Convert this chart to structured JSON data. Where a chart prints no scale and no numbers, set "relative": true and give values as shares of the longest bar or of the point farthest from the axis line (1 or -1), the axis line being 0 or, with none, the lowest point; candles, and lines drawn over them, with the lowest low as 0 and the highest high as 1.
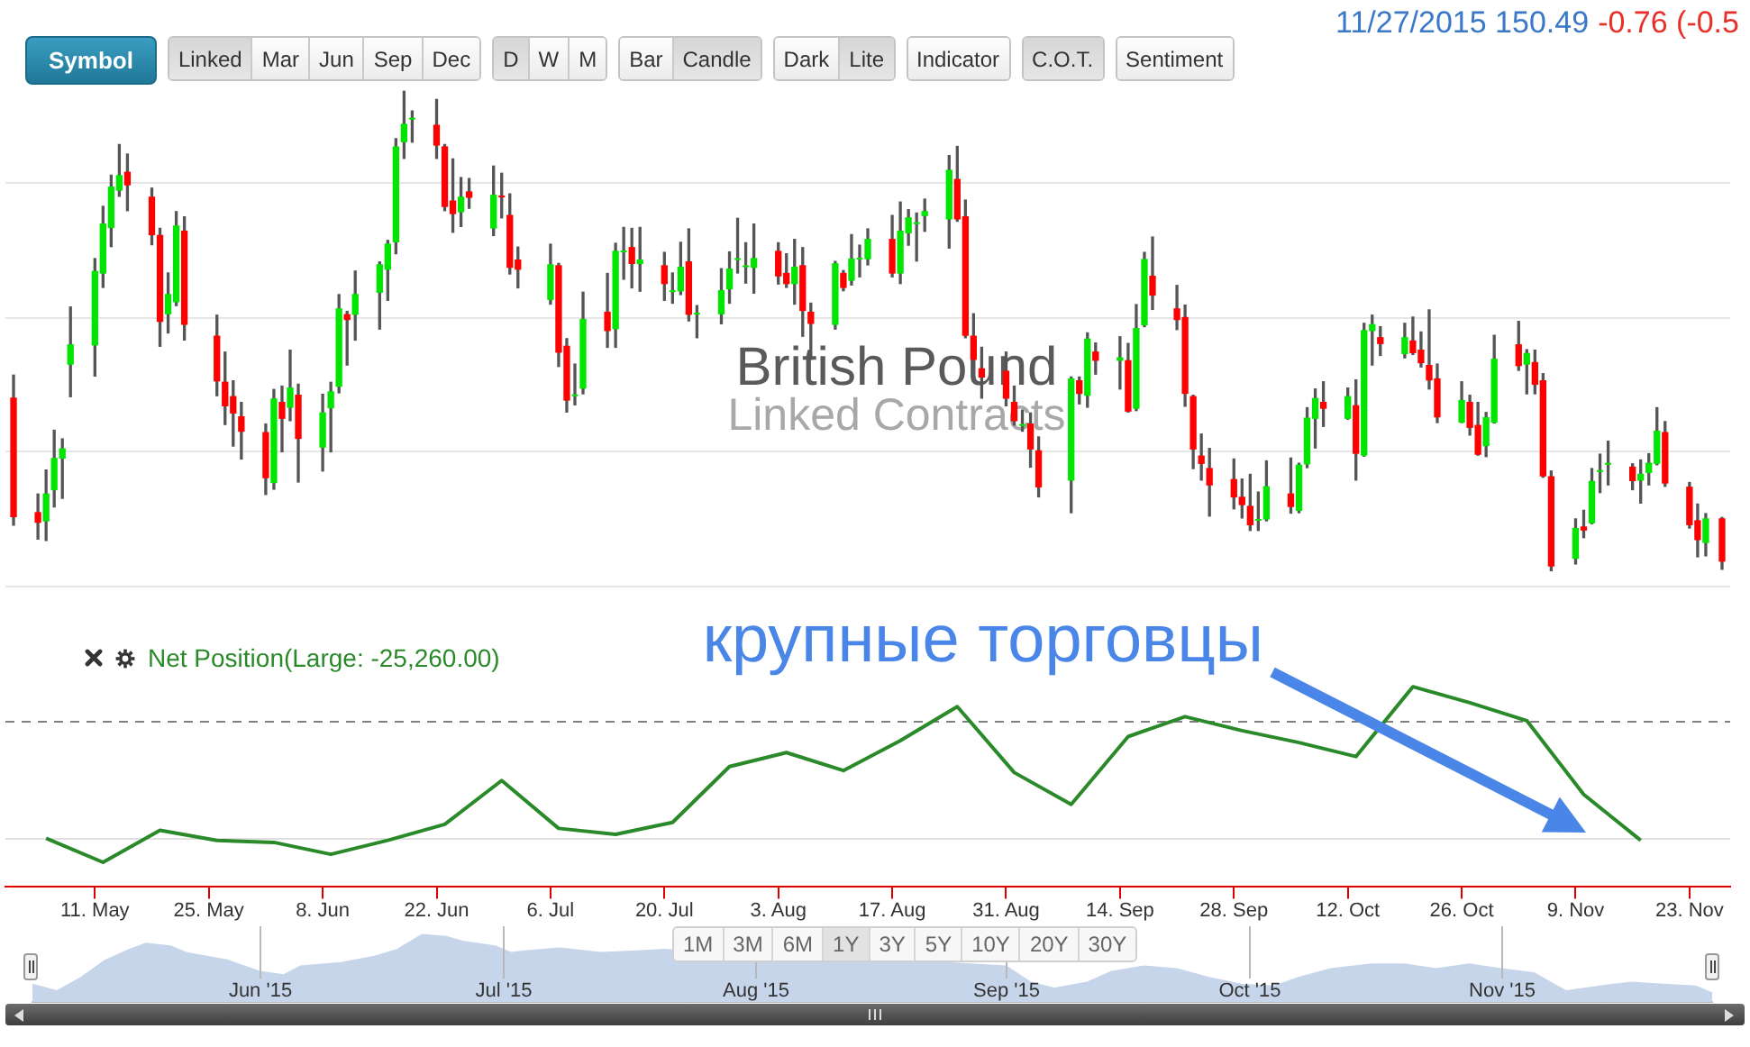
{
  "chart_data": [
    {
      "type": "other",
      "annotations": [
        "Symbol",
        "Linked",
        "Mar",
        "Jun",
        "Sep",
        "Dec",
        "D",
        "W",
        "M",
        "Bar",
        "Candle",
        "Dark",
        "Lite",
        "Indicator",
        "C.O.T.",
        "Sentiment"
      ]
    },
    {
      "type": "candlestick",
      "title": "British Pound",
      "subtitle": "Linked Contracts",
      "relative": true,
      "tick_labels": false,
      "xlim": [
        "2015-04-30",
        "2015-11-28"
      ],
      "ref_lines": [
        {
          "axis": "y",
          "value": 0.81,
          "color": "#e6e6e6"
        },
        {
          "axis": "y",
          "value": 0.53,
          "color": "#e6e6e6"
        },
        {
          "axis": "y",
          "value": 0.25,
          "color": "#e6e6e6"
        },
        {
          "axis": "y",
          "value": -0.03,
          "color": "#e6e6e6"
        }
      ],
      "annotations": [
        "11/27/2015 150.49",
        "-0.76 (-0.5"
      ],
      "x": [
        "2015-05-01",
        "2015-05-04",
        "2015-05-05",
        "2015-05-06",
        "2015-05-07",
        "2015-05-08",
        "2015-05-11",
        "2015-05-12",
        "2015-05-13",
        "2015-05-14",
        "2015-05-15",
        "2015-05-18",
        "2015-05-19",
        "2015-05-20",
        "2015-05-21",
        "2015-05-22",
        "2015-05-26",
        "2015-05-27",
        "2015-05-28",
        "2015-05-29",
        "2015-06-01",
        "2015-06-02",
        "2015-06-03",
        "2015-06-04",
        "2015-06-05",
        "2015-06-08",
        "2015-06-09",
        "2015-06-10",
        "2015-06-11",
        "2015-06-12",
        "2015-06-15",
        "2015-06-16",
        "2015-06-17",
        "2015-06-18",
        "2015-06-19",
        "2015-06-22",
        "2015-06-23",
        "2015-06-24",
        "2015-06-25",
        "2015-06-26",
        "2015-06-29",
        "2015-06-30",
        "2015-07-01",
        "2015-07-02",
        "2015-07-06",
        "2015-07-07",
        "2015-07-08",
        "2015-07-09",
        "2015-07-10",
        "2015-07-13",
        "2015-07-14",
        "2015-07-15",
        "2015-07-16",
        "2015-07-17",
        "2015-07-20",
        "2015-07-21",
        "2015-07-22",
        "2015-07-23",
        "2015-07-24",
        "2015-07-27",
        "2015-07-28",
        "2015-07-29",
        "2015-07-30",
        "2015-07-31",
        "2015-08-03",
        "2015-08-04",
        "2015-08-05",
        "2015-08-06",
        "2015-08-07",
        "2015-08-10",
        "2015-08-11",
        "2015-08-12",
        "2015-08-13",
        "2015-08-14",
        "2015-08-17",
        "2015-08-18",
        "2015-08-19",
        "2015-08-20",
        "2015-08-21",
        "2015-08-24",
        "2015-08-25",
        "2015-08-26",
        "2015-08-27",
        "2015-08-28",
        "2015-08-31",
        "2015-09-01",
        "2015-09-02",
        "2015-09-03",
        "2015-09-04",
        "2015-09-08",
        "2015-09-09",
        "2015-09-10",
        "2015-09-11",
        "2015-09-14",
        "2015-09-15",
        "2015-09-16",
        "2015-09-17",
        "2015-09-18",
        "2015-09-21",
        "2015-09-22",
        "2015-09-23",
        "2015-09-24",
        "2015-09-25",
        "2015-09-28",
        "2015-09-29",
        "2015-09-30",
        "2015-10-01",
        "2015-10-02",
        "2015-10-05",
        "2015-10-06",
        "2015-10-07",
        "2015-10-08",
        "2015-10-09",
        "2015-10-12",
        "2015-10-13",
        "2015-10-14",
        "2015-10-15",
        "2015-10-16",
        "2015-10-19",
        "2015-10-20",
        "2015-10-21",
        "2015-10-22",
        "2015-10-23",
        "2015-10-26",
        "2015-10-27",
        "2015-10-28",
        "2015-10-29",
        "2015-10-30",
        "2015-11-02",
        "2015-11-03",
        "2015-11-04",
        "2015-11-05",
        "2015-11-06",
        "2015-11-09",
        "2015-11-10",
        "2015-11-11",
        "2015-11-12",
        "2015-11-13",
        "2015-11-16",
        "2015-11-17",
        "2015-11-18",
        "2015-11-19",
        "2015-11-20",
        "2015-11-23",
        "2015-11-24",
        "2015-11-25",
        "2015-11-27"
      ],
      "ohlc": [
        [
          0.36,
          0.408,
          0.095,
          0.113
        ],
        [
          0.121,
          0.16,
          0.066,
          0.101
        ],
        [
          0.104,
          0.21,
          0.063,
          0.16
        ],
        [
          0.169,
          0.293,
          0.133,
          0.234
        ],
        [
          0.235,
          0.275,
          0.151,
          0.254
        ],
        [
          0.431,
          0.55,
          0.363,
          0.471
        ],
        [
          0.471,
          0.651,
          0.406,
          0.624
        ],
        [
          0.621,
          0.76,
          0.591,
          0.723
        ],
        [
          0.716,
          0.825,
          0.676,
          0.8
        ],
        [
          0.794,
          0.889,
          0.781,
          0.824
        ],
        [
          0.831,
          0.869,
          0.751,
          0.805
        ],
        [
          0.779,
          0.798,
          0.68,
          0.701
        ],
        [
          0.699,
          0.714,
          0.468,
          0.52
        ],
        [
          0.536,
          0.621,
          0.496,
          0.576
        ],
        [
          0.561,
          0.749,
          0.553,
          0.719
        ],
        [
          0.708,
          0.738,
          0.481,
          0.514
        ],
        [
          0.489,
          0.533,
          0.365,
          0.396
        ],
        [
          0.393,
          0.456,
          0.305,
          0.344
        ],
        [
          0.363,
          0.396,
          0.26,
          0.329
        ],
        [
          0.321,
          0.351,
          0.233,
          0.291
        ],
        [
          0.288,
          0.306,
          0.159,
          0.194
        ],
        [
          0.184,
          0.378,
          0.17,
          0.358
        ],
        [
          0.351,
          0.385,
          0.248,
          0.318
        ],
        [
          0.341,
          0.46,
          0.313,
          0.381
        ],
        [
          0.366,
          0.389,
          0.185,
          0.276
        ],
        [
          0.258,
          0.368,
          0.208,
          0.329
        ],
        [
          0.34,
          0.393,
          0.248,
          0.373
        ],
        [
          0.385,
          0.576,
          0.371,
          0.546
        ],
        [
          0.534,
          0.541,
          0.429,
          0.524
        ],
        [
          0.535,
          0.625,
          0.481,
          0.576
        ],
        [
          0.581,
          0.644,
          0.504,
          0.638
        ],
        [
          0.629,
          0.689,
          0.564,
          0.681
        ],
        [
          0.686,
          0.901,
          0.661,
          0.884
        ],
        [
          0.895,
          1,
          0.86,
          0.931
        ],
        [
          0.943,
          0.959,
          0.894,
          0.943
        ],
        [
          0.929,
          0.983,
          0.86,
          0.888
        ],
        [
          0.884,
          0.889,
          0.751,
          0.76
        ],
        [
          0.771,
          0.859,
          0.706,
          0.745
        ],
        [
          0.749,
          0.82,
          0.718,
          0.779
        ],
        [
          0.79,
          0.818,
          0.756,
          0.779
        ],
        [
          0.715,
          0.844,
          0.699,
          0.783
        ],
        [
          0.781,
          0.829,
          0.736,
          0.78
        ],
        [
          0.741,
          0.786,
          0.619,
          0.633
        ],
        [
          0.648,
          0.675,
          0.59,
          0.629
        ],
        [
          0.566,
          0.681,
          0.556,
          0.638
        ],
        [
          0.636,
          0.641,
          0.426,
          0.456
        ],
        [
          0.468,
          0.484,
          0.331,
          0.356
        ],
        [
          0.366,
          0.431,
          0.346,
          0.366
        ],
        [
          0.381,
          0.581,
          0.369,
          0.524
        ],
        [
          0.539,
          0.62,
          0.466,
          0.501
        ],
        [
          0.505,
          0.683,
          0.466,
          0.666
        ],
        [
          0.666,
          0.716,
          0.608,
          0.666
        ],
        [
          0.674,
          0.714,
          0.59,
          0.641
        ],
        [
          0.641,
          0.716,
          0.583,
          0.648
        ],
        [
          0.636,
          0.664,
          0.564,
          0.599
        ],
        [
          0.583,
          0.621,
          0.558,
          0.583
        ],
        [
          0.584,
          0.685,
          0.576,
          0.633
        ],
        [
          0.644,
          0.713,
          0.521,
          0.535
        ],
        [
          0.536,
          0.553,
          0.486,
          0.536
        ],
        [
          0.536,
          0.63,
          0.515,
          0.584
        ],
        [
          0.588,
          0.665,
          0.558,
          0.629
        ],
        [
          0.65,
          0.735,
          0.621,
          0.65
        ],
        [
          0.635,
          0.684,
          0.6,
          0.635
        ],
        [
          0.633,
          0.723,
          0.579,
          0.651
        ],
        [
          0.666,
          0.684,
          0.598,
          0.615
        ],
        [
          0.62,
          0.661,
          0.591,
          0.599
        ],
        [
          0.599,
          0.691,
          0.556,
          0.633
        ],
        [
          0.636,
          0.674,
          0.489,
          0.543
        ],
        [
          0.539,
          0.558,
          0.441,
          0.516
        ],
        [
          0.514,
          0.645,
          0.504,
          0.64
        ],
        [
          0.62,
          0.626,
          0.584,
          0.591
        ],
        [
          0.606,
          0.701,
          0.596,
          0.65
        ],
        [
          0.651,
          0.679,
          0.613,
          0.651
        ],
        [
          0.651,
          0.713,
          0.638,
          0.691
        ],
        [
          0.691,
          0.741,
          0.613,
          0.621
        ],
        [
          0.621,
          0.769,
          0.599,
          0.708
        ],
        [
          0.705,
          0.753,
          0.679,
          0.736
        ],
        [
          0.725,
          0.746,
          0.646,
          0.725
        ],
        [
          0.741,
          0.775,
          0.708,
          0.749
        ],
        [
          0.734,
          0.866,
          0.673,
          0.835
        ],
        [
          0.816,
          0.885,
          0.729,
          0.734
        ],
        [
          0.738,
          0.773,
          0.486,
          0.491
        ],
        [
          0.489,
          0.536,
          0.423,
          0.441
        ],
        [
          0.421,
          0.466,
          0.36,
          0.404
        ],
        [
          0.416,
          0.456,
          0.344,
          0.36
        ],
        [
          0.351,
          0.385,
          0.304,
          0.313
        ],
        [
          0.304,
          0.335,
          0.291,
          0.304
        ],
        [
          0.306,
          0.329,
          0.216,
          0.254
        ],
        [
          0.25,
          0.279,
          0.154,
          0.175
        ],
        [
          0.189,
          0.404,
          0.121,
          0.4
        ],
        [
          0.396,
          0.404,
          0.348,
          0.37
        ],
        [
          0.366,
          0.496,
          0.341,
          0.483
        ],
        [
          0.456,
          0.475,
          0.41,
          0.439
        ],
        [
          0.439,
          0.488,
          0.379,
          0.444
        ],
        [
          0.438,
          0.474,
          0.331,
          0.333
        ],
        [
          0.339,
          0.555,
          0.334,
          0.505
        ],
        [
          0.513,
          0.664,
          0.509,
          0.649
        ],
        [
          0.614,
          0.696,
          0.545,
          0.575
        ],
        [
          0.546,
          0.595,
          0.503,
          0.524
        ],
        [
          0.528,
          0.554,
          0.343,
          0.37
        ],
        [
          0.363,
          0.366,
          0.213,
          0.254
        ],
        [
          0.239,
          0.285,
          0.189,
          0.224
        ],
        [
          0.213,
          0.255,
          0.114,
          0.179
        ],
        [
          0.19,
          0.233,
          0.129,
          0.154
        ],
        [
          0.153,
          0.191,
          0.11,
          0.138
        ],
        [
          0.134,
          0.201,
          0.084,
          0.096
        ],
        [
          0.106,
          0.164,
          0.084,
          0.106
        ],
        [
          0.108,
          0.229,
          0.104,
          0.175
        ],
        [
          0.16,
          0.235,
          0.12,
          0.134
        ],
        [
          0.126,
          0.224,
          0.121,
          0.22
        ],
        [
          0.223,
          0.34,
          0.215,
          0.318
        ],
        [
          0.318,
          0.379,
          0.256,
          0.359
        ],
        [
          0.351,
          0.394,
          0.301,
          0.339
        ],
        [
          0.318,
          0.381,
          0.316,
          0.363
        ],
        [
          0.344,
          0.398,
          0.189,
          0.245
        ],
        [
          0.241,
          0.516,
          0.239,
          0.501
        ],
        [
          0.501,
          0.533,
          0.429,
          0.513
        ],
        [
          0.486,
          0.509,
          0.449,
          0.474
        ],
        [
          0.453,
          0.516,
          0.444,
          0.486
        ],
        [
          0.479,
          0.529,
          0.451,
          0.455
        ],
        [
          0.46,
          0.498,
          0.425,
          0.434
        ],
        [
          0.428,
          0.544,
          0.379,
          0.398
        ],
        [
          0.4,
          0.431,
          0.309,
          0.321
        ],
        [
          0.31,
          0.394,
          0.309,
          0.355
        ],
        [
          0.351,
          0.366,
          0.283,
          0.299
        ],
        [
          0.303,
          0.351,
          0.241,
          0.243
        ],
        [
          0.261,
          0.33,
          0.238,
          0.319
        ],
        [
          0.31,
          0.491,
          0.308,
          0.441
        ],
        [
          0.471,
          0.52,
          0.418,
          0.428
        ],
        [
          0.431,
          0.461,
          0.369,
          0.453
        ],
        [
          0.434,
          0.46,
          0.369,
          0.389
        ],
        [
          0.396,
          0.411,
          0.195,
          0.198
        ],
        [
          0.196,
          0.208,
          0,
          0.01
        ],
        [
          0.026,
          0.108,
          0.014,
          0.088
        ],
        [
          0.091,
          0.126,
          0.069,
          0.085
        ],
        [
          0.1,
          0.213,
          0.098,
          0.186
        ],
        [
          0.208,
          0.243,
          0.163,
          0.208
        ],
        [
          0.223,
          0.27,
          0.179,
          0.223
        ],
        [
          0.216,
          0.223,
          0.169,
          0.188
        ],
        [
          0.189,
          0.231,
          0.141,
          0.201
        ],
        [
          0.205,
          0.244,
          0.179,
          0.224
        ],
        [
          0.224,
          0.34,
          0.221,
          0.291
        ],
        [
          0.288,
          0.311,
          0.176,
          0.183
        ],
        [
          0.174,
          0.184,
          0.089,
          0.096
        ],
        [
          0.104,
          0.139,
          0.029,
          0.065
        ],
        [
          0.059,
          0.119,
          0.031,
          0.108
        ],
        [
          0.108,
          0.111,
          0.003,
          0.02
        ]
      ],
      "colors": [
        "#ff0000",
        "#ff0000",
        "#00e600",
        "#00e600",
        "#00e600",
        "#00e600",
        "#00e600",
        "#00e600",
        "#00e600",
        "#00e600",
        "#ff0000",
        "#ff0000",
        "#ff0000",
        "#00e600",
        "#00e600",
        "#ff0000",
        "#ff0000",
        "#ff0000",
        "#ff0000",
        "#ff0000",
        "#ff0000",
        "#00e600",
        "#ff0000",
        "#00e600",
        "#ff0000",
        "#00e600",
        "#00e600",
        "#00e600",
        "#ff0000",
        "#00e600",
        "#00e600",
        "#00e600",
        "#00e600",
        "#00e600",
        "#00e600",
        "#ff0000",
        "#ff0000",
        "#ff0000",
        "#00e600",
        "#ff0000",
        "#00e600",
        "#ff0000",
        "#ff0000",
        "#ff0000",
        "#00e600",
        "#ff0000",
        "#ff0000",
        "#00e600",
        "#00e600",
        "#ff0000",
        "#00e600",
        "#00e600",
        "#ff0000",
        "#00e600",
        "#ff0000",
        "#00e600",
        "#00e600",
        "#ff0000",
        "#00e600",
        "#00e600",
        "#00e600",
        "#00e600",
        "#00e600",
        "#00e600",
        "#ff0000",
        "#ff0000",
        "#00e600",
        "#ff0000",
        "#ff0000",
        "#00e600",
        "#ff0000",
        "#00e600",
        "#00e600",
        "#00e600",
        "#ff0000",
        "#00e600",
        "#00e600",
        "#00e600",
        "#00e600",
        "#00e600",
        "#ff0000",
        "#ff0000",
        "#ff0000",
        "#ff0000",
        "#ff0000",
        "#ff0000",
        "#00e600",
        "#ff0000",
        "#ff0000",
        "#00e600",
        "#ff0000",
        "#00e600",
        "#ff0000",
        "#00e600",
        "#ff0000",
        "#00e600",
        "#00e600",
        "#ff0000",
        "#ff0000",
        "#ff0000",
        "#ff0000",
        "#ff0000",
        "#ff0000",
        "#ff0000",
        "#ff0000",
        "#ff0000",
        "#00e600",
        "#00e600",
        "#ff0000",
        "#00e600",
        "#00e600",
        "#00e600",
        "#ff0000",
        "#00e600",
        "#ff0000",
        "#00e600",
        "#00e600",
        "#ff0000",
        "#00e600",
        "#ff0000",
        "#ff0000",
        "#ff0000",
        "#ff0000",
        "#00e600",
        "#ff0000",
        "#ff0000",
        "#00e600",
        "#00e600",
        "#ff0000",
        "#00e600",
        "#ff0000",
        "#ff0000",
        "#ff0000",
        "#00e600",
        "#ff0000",
        "#00e600",
        "#00e600",
        "#00e600",
        "#ff0000",
        "#00e600",
        "#00e600",
        "#00e600",
        "#ff0000",
        "#ff0000",
        "#ff0000",
        "#00e600",
        "#ff0000"
      ]
    },
    {
      "type": "line",
      "relative": true,
      "legend": "top left",
      "marker": "none",
      "xlim": [
        "2015-04-30",
        "2015-11-28"
      ],
      "xticks": [
        {
          "value": "2015-05-11",
          "label": "11. May"
        },
        {
          "value": "2015-05-25",
          "label": "25. May"
        },
        {
          "value": "2015-06-08",
          "label": "8. Jun"
        },
        {
          "value": "2015-06-22",
          "label": "22. Jun"
        },
        {
          "value": "2015-07-06",
          "label": "6. Jul"
        },
        {
          "value": "2015-07-20",
          "label": "20. Jul"
        },
        {
          "value": "2015-08-03",
          "label": "3. Aug"
        },
        {
          "value": "2015-08-17",
          "label": "17. Aug"
        },
        {
          "value": "2015-08-31",
          "label": "31. Aug"
        },
        {
          "value": "2015-09-14",
          "label": "14. Sep"
        },
        {
          "value": "2015-09-28",
          "label": "28. Sep"
        },
        {
          "value": "2015-10-12",
          "label": "12. Oct"
        },
        {
          "value": "2015-10-26",
          "label": "26. Oct"
        },
        {
          "value": "2015-11-09",
          "label": "9. Nov"
        },
        {
          "value": "2015-11-23",
          "label": "23. Nov"
        }
      ],
      "x": [
        "2015-05-05",
        "2015-05-12",
        "2015-05-19",
        "2015-05-26",
        "2015-06-02",
        "2015-06-09",
        "2015-06-16",
        "2015-06-23",
        "2015-06-30",
        "2015-07-07",
        "2015-07-14",
        "2015-07-21",
        "2015-07-28",
        "2015-08-04",
        "2015-08-11",
        "2015-08-18",
        "2015-08-25",
        "2015-09-01",
        "2015-09-08",
        "2015-09-15",
        "2015-09-22",
        "2015-09-29",
        "2015-10-06",
        "2015-10-13",
        "2015-10-20",
        "2015-10-27",
        "2015-11-03",
        "2015-11-10",
        "2015-11-17"
      ],
      "series": [
        {
          "name": "Net Position(Large: -25,260.00)",
          "color": "#2a8a2a",
          "values": [
            0.24,
            0.12,
            0.28,
            0.23,
            0.22,
            0.16,
            0.23,
            0.31,
            0.53,
            0.29,
            0.26,
            0.32,
            0.6,
            0.67,
            0.58,
            0.73,
            0.9,
            0.57,
            0.41,
            0.75,
            0.85,
            0.78,
            0.72,
            0.65,
            1,
            0.92,
            0.83,
            0.46,
            0.23
          ]
        }
      ],
      "ref_lines": [
        {
          "axis": "y",
          "value": 0.83,
          "line_style": "dashed",
          "color": "#808080"
        },
        {
          "axis": "y",
          "value": 0.24,
          "color": "#e0e0e0"
        }
      ],
      "annotations": [
        "крупные торговцы"
      ]
    },
    {
      "type": "area",
      "relative": true,
      "grid": "x",
      "marker": "none",
      "color": "#c6d5ea",
      "xlim": [
        "2015-05-04",
        "2015-11-27"
      ],
      "xticks": [
        {
          "value": "2015-06-01",
          "label": "Jun '15"
        },
        {
          "value": "2015-07-01",
          "label": "Jul '15"
        },
        {
          "value": "2015-08-01",
          "label": "Aug '15"
        },
        {
          "value": "2015-09-01",
          "label": "Sep '15"
        },
        {
          "value": "2015-10-01",
          "label": "Oct '15"
        },
        {
          "value": "2015-11-01",
          "label": "Nov '15"
        }
      ],
      "x": [
        "2015-05-04",
        "2015-05-07",
        "2015-05-10",
        "2015-05-13",
        "2015-05-16",
        "2015-05-18",
        "2015-05-21",
        "2015-05-23",
        "2015-05-28",
        "2015-06-01",
        "2015-06-04",
        "2015-06-06",
        "2015-06-11",
        "2015-06-15",
        "2015-06-18",
        "2015-06-21",
        "2015-06-24",
        "2015-06-26",
        "2015-06-30",
        "2015-07-02",
        "2015-07-04",
        "2015-07-08",
        "2015-07-13",
        "2015-07-17",
        "2015-07-21",
        "2015-07-27",
        "2015-08-01",
        "2015-08-07",
        "2015-08-12",
        "2015-08-18",
        "2015-08-24",
        "2015-08-28",
        "2015-09-01",
        "2015-09-04",
        "2015-09-07",
        "2015-09-11",
        "2015-09-14",
        "2015-09-18",
        "2015-09-22",
        "2015-09-26",
        "2015-09-30",
        "2015-10-04",
        "2015-10-07",
        "2015-10-11",
        "2015-10-16",
        "2015-10-20",
        "2015-10-24",
        "2015-10-28",
        "2015-11-01",
        "2015-11-05",
        "2015-11-09",
        "2015-11-13",
        "2015-11-17",
        "2015-11-21",
        "2015-11-25",
        "2015-11-27"
      ],
      "values": [
        0.26,
        0.16,
        0.36,
        0.62,
        0.78,
        0.87,
        0.83,
        0.73,
        0.62,
        0.45,
        0.4,
        0.53,
        0.58,
        0.67,
        0.78,
        1,
        0.97,
        0.9,
        0.83,
        0.73,
        0.76,
        0.8,
        0.73,
        0.75,
        0.78,
        null,
        null,
        0.62,
        0.67,
        null,
        null,
        null,
        0.53,
        0.29,
        0.2,
        0.29,
        0.45,
        0.53,
        0.49,
        0.36,
        0.26,
        0.23,
        0.36,
        0.49,
        0.56,
        0.56,
        0.49,
        0.56,
        0.49,
        0.43,
        0.16,
        0.23,
        0.29,
        0.26,
        0.23,
        0.13
      ],
      "annotations": [
        "1M",
        "3M",
        "6M",
        "1Y",
        "3Y",
        "5Y",
        "10Y",
        "20Y",
        "30Y"
      ]
    }
  ]
}
